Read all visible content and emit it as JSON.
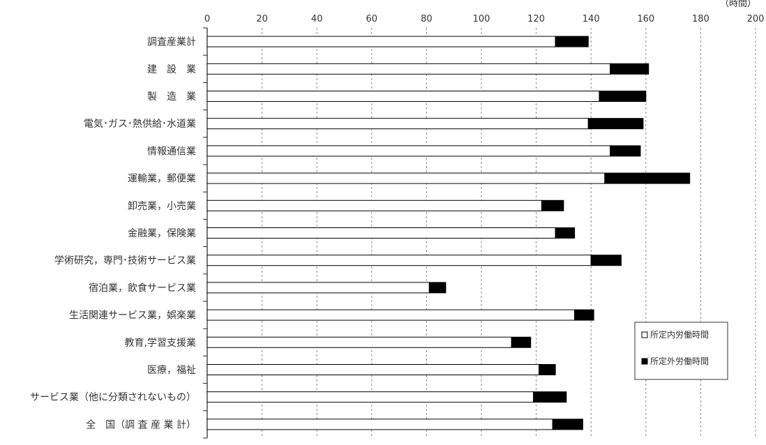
{
  "chart_data": {
    "type": "bar",
    "orientation": "horizontal",
    "stacked": true,
    "unit_label": "（時間）",
    "xlim": [
      0,
      200
    ],
    "x_ticks": [
      0,
      20,
      40,
      60,
      80,
      100,
      120,
      140,
      160,
      180,
      200
    ],
    "grid": "vertical dashed",
    "legend_position": "bottom-right",
    "categories": [
      "調査産業計",
      "建　設　業",
      "製　造　業",
      "電気･ガス･熱供給･水道業",
      "情報通信業",
      "運輸業，郵便業",
      "卸売業，小売業",
      "金融業，保険業",
      "学術研究，専門･技術サービス業",
      "宿泊業，飲食サービス業",
      "生活関連サービス業，娯楽業",
      "教育,学習支援業",
      "医療，福祉",
      "サービス業（他に分類されないもの）",
      "全　国（調 査 産 業 計）"
    ],
    "series": [
      {
        "name": "所定内労働時間",
        "color": "#ffffff",
        "values": [
          127,
          147,
          143,
          139,
          147,
          145,
          122,
          127,
          140,
          81,
          134,
          111,
          121,
          119,
          126
        ]
      },
      {
        "name": "所定外労働時間",
        "color": "#000000",
        "values": [
          12,
          14,
          17,
          20,
          11,
          31,
          8,
          7,
          11,
          6,
          7,
          7,
          6,
          12,
          11
        ]
      }
    ]
  }
}
